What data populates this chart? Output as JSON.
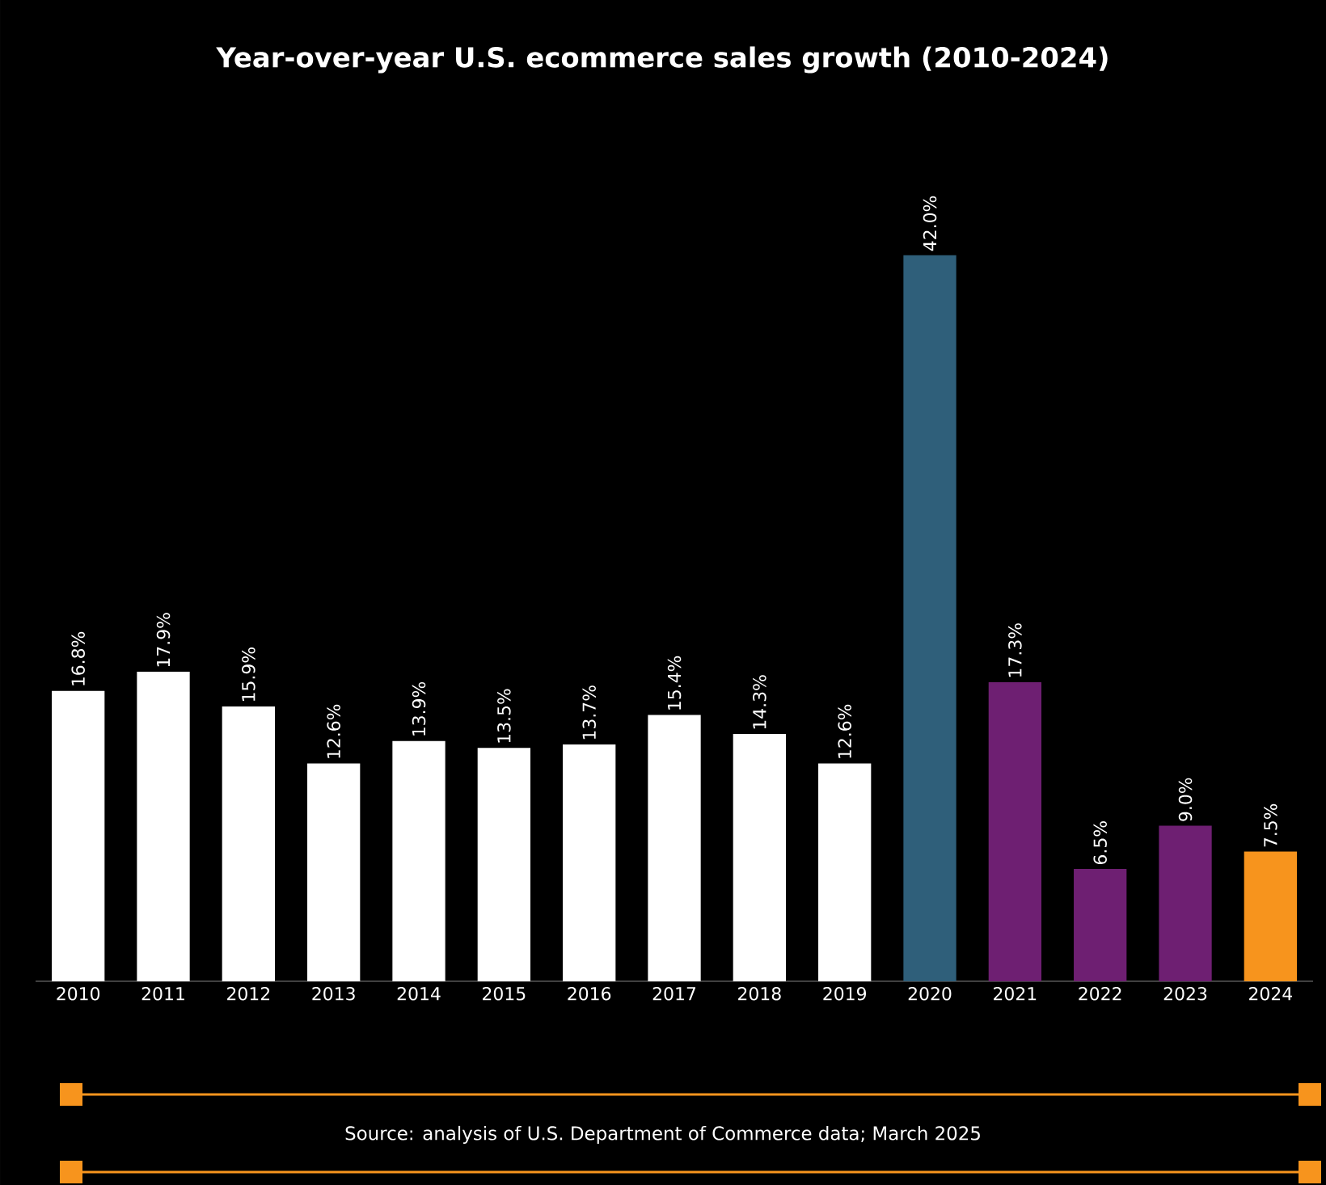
{
  "chart_data": {
    "type": "bar",
    "title": "Year-over-year U.S. ecommerce sales growth  (2010-2024)",
    "categories": [
      "2010",
      "2011",
      "2012",
      "2013",
      "2014",
      "2015",
      "2016",
      "2017",
      "2018",
      "2019",
      "2020",
      "2021",
      "2022",
      "2023",
      "2024"
    ],
    "values": [
      16.8,
      17.9,
      15.9,
      12.6,
      13.9,
      13.5,
      13.7,
      15.4,
      14.3,
      12.6,
      42.0,
      17.3,
      6.5,
      9.0,
      7.5
    ],
    "value_labels": [
      "16.8%",
      "17.9%",
      "15.9%",
      "12.6%",
      "13.9%",
      "13.5%",
      "13.7%",
      "15.4%",
      "14.3%",
      "12.6%",
      "42.0%",
      "17.3%",
      "6.5%",
      "9.0%",
      "7.5%"
    ],
    "colors": [
      "#ffffff",
      "#ffffff",
      "#ffffff",
      "#ffffff",
      "#ffffff",
      "#ffffff",
      "#ffffff",
      "#ffffff",
      "#ffffff",
      "#ffffff",
      "#2f5f7a",
      "#6e1f72",
      "#6e1f72",
      "#6e1f72",
      "#f7941d"
    ],
    "annotations": [
      "Source: analysis of U.S. Department of Commerce data; March 2025"
    ]
  }
}
